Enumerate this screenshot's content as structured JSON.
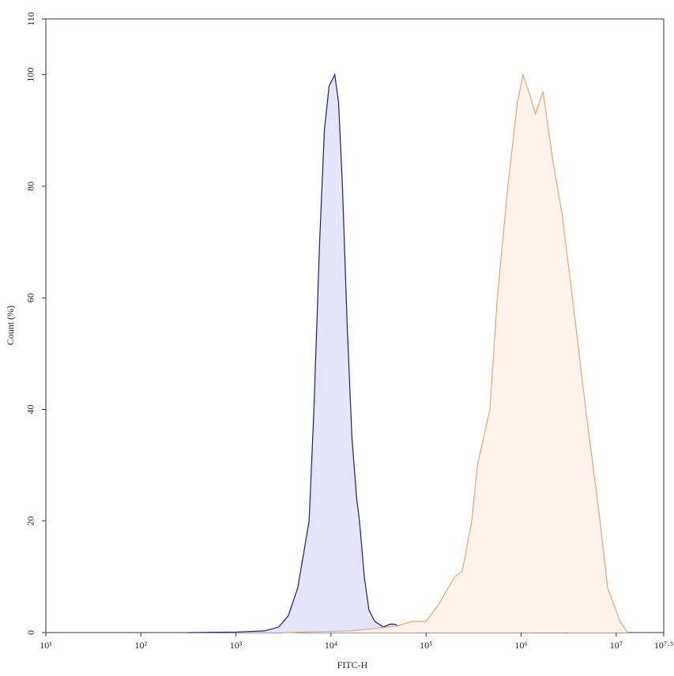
{
  "chart_data": {
    "type": "histogram-overlay",
    "x_label": "FITC-H",
    "y_label": "Count (%)",
    "xscale": "log",
    "xlim": [
      10,
      31622776.6
    ],
    "ylim": [
      0,
      110
    ],
    "xticks": [
      {
        "value": 10,
        "label": "10¹"
      },
      {
        "value": 100,
        "label": "10²"
      },
      {
        "value": 1000,
        "label": "10³"
      },
      {
        "value": 10000,
        "label": "10⁴"
      },
      {
        "value": 100000,
        "label": "10⁵"
      },
      {
        "value": 1000000,
        "label": "10⁶"
      },
      {
        "value": 10000000,
        "label": "10⁷"
      },
      {
        "value": 31622776.6,
        "label": "10⁷·⁵"
      }
    ],
    "yticks": [
      0,
      20,
      40,
      60,
      80,
      100,
      110
    ],
    "grid": false,
    "series": [
      {
        "color": "#1c1c7a",
        "fill_color": "#e4e4fa",
        "x": [
          316,
          1000,
          2000,
          2818,
          3548,
          4467,
          5248,
          5888,
          6607,
          7586,
          8511,
          9550,
          10965,
          12023,
          13183,
          14791,
          16596,
          18621,
          19953,
          22387,
          25119,
          28840,
          35481,
          41687,
          46774,
          56234,
          79433,
          158489,
          398107,
          1000000,
          3162278
        ],
        "values": [
          0,
          0.1,
          0.3,
          1,
          3,
          8,
          15,
          20,
          40,
          70,
          90,
          98,
          100,
          95,
          80,
          55,
          35,
          24,
          20,
          10,
          4,
          2,
          1,
          1.5,
          1.5,
          0.8,
          0.5,
          0.3,
          0.2,
          0.1,
          0
        ]
      },
      {
        "color": "#e0a878",
        "fill_color": "#fdf3ea",
        "x": [
          3162,
          16218,
          32000,
          50000,
          71000,
          100000,
          135000,
          200000,
          240000,
          302000,
          347000,
          468000,
          562000,
          724000,
          912000,
          1047000,
          1202000,
          1413000,
          1698000,
          2138000,
          2692000,
          3467000,
          4786000,
          6761000,
          8128000,
          10965000,
          13183000
        ],
        "values": [
          0,
          0.3,
          0.8,
          1.2,
          2,
          2,
          5,
          10,
          11,
          20,
          30,
          40,
          60,
          80,
          95,
          100,
          97,
          93,
          97,
          85,
          75,
          60,
          40,
          20,
          8,
          2,
          0
        ]
      }
    ]
  }
}
